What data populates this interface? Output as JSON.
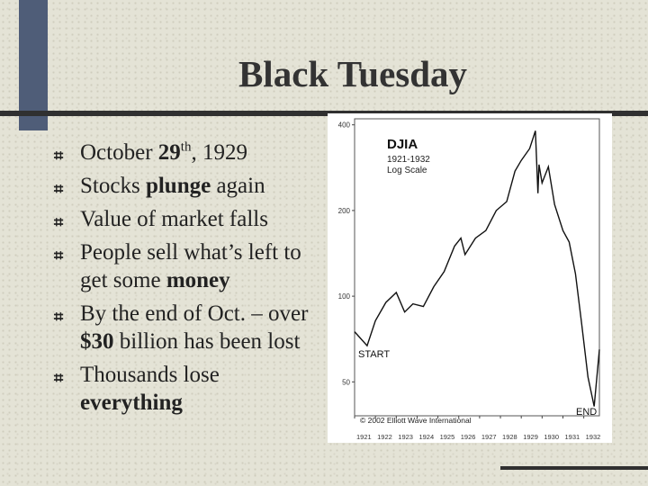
{
  "slide": {
    "title": "Black Tuesday",
    "bullets": [
      {
        "parts": [
          "October ",
          "29",
          "th",
          ", 1929"
        ]
      },
      {
        "parts": [
          "Stocks ",
          "plunge",
          " again"
        ]
      },
      {
        "parts": [
          "Value of market falls"
        ]
      },
      {
        "parts": [
          "People sell what’s left to get some ",
          "money"
        ]
      },
      {
        "parts": [
          "By the end of Oct. – over ",
          "$30",
          " billion has been lost"
        ]
      },
      {
        "parts": [
          "Thousands lose ",
          "everything"
        ]
      }
    ]
  },
  "chart_data": {
    "type": "line",
    "title": "DJIA",
    "subtitle_1": "1921-1932",
    "subtitle_2": "Log Scale",
    "label_start": "START",
    "label_end": "END",
    "copyright": "© 2002 Elliott Wave International",
    "y_scale": "log",
    "ylim": [
      38,
      420
    ],
    "y_ticks": [
      {
        "value": 400,
        "label": "400"
      },
      {
        "value": 200,
        "label": "200"
      },
      {
        "value": 100,
        "label": "100"
      },
      {
        "value": 50,
        "label": "50"
      }
    ],
    "x_ticks": [
      "1921",
      "1922",
      "1923",
      "1924",
      "1925",
      "1926",
      "1927",
      "1928",
      "1929",
      "1930",
      "1931",
      "1932"
    ],
    "xlim": [
      1921.0,
      1932.75
    ],
    "series": [
      {
        "x": [
          1921.0,
          1921.6,
          1922.0,
          1922.5,
          1923.0,
          1923.4,
          1923.8,
          1924.3,
          1924.8,
          1925.3,
          1925.8,
          1926.1,
          1926.3,
          1926.8,
          1927.3,
          1927.8,
          1928.3,
          1928.7,
          1929.0,
          1929.4,
          1929.68,
          1929.8,
          1929.85,
          1930.0,
          1930.3,
          1930.6,
          1931.0,
          1931.3,
          1931.6,
          1931.9,
          1932.2,
          1932.5,
          1932.75
        ],
        "y": [
          75,
          67,
          82,
          95,
          103,
          88,
          94,
          92,
          108,
          122,
          150,
          160,
          140,
          160,
          170,
          200,
          215,
          275,
          300,
          330,
          381,
          230,
          290,
          250,
          285,
          210,
          170,
          155,
          120,
          80,
          52,
          41,
          65
        ]
      }
    ]
  }
}
